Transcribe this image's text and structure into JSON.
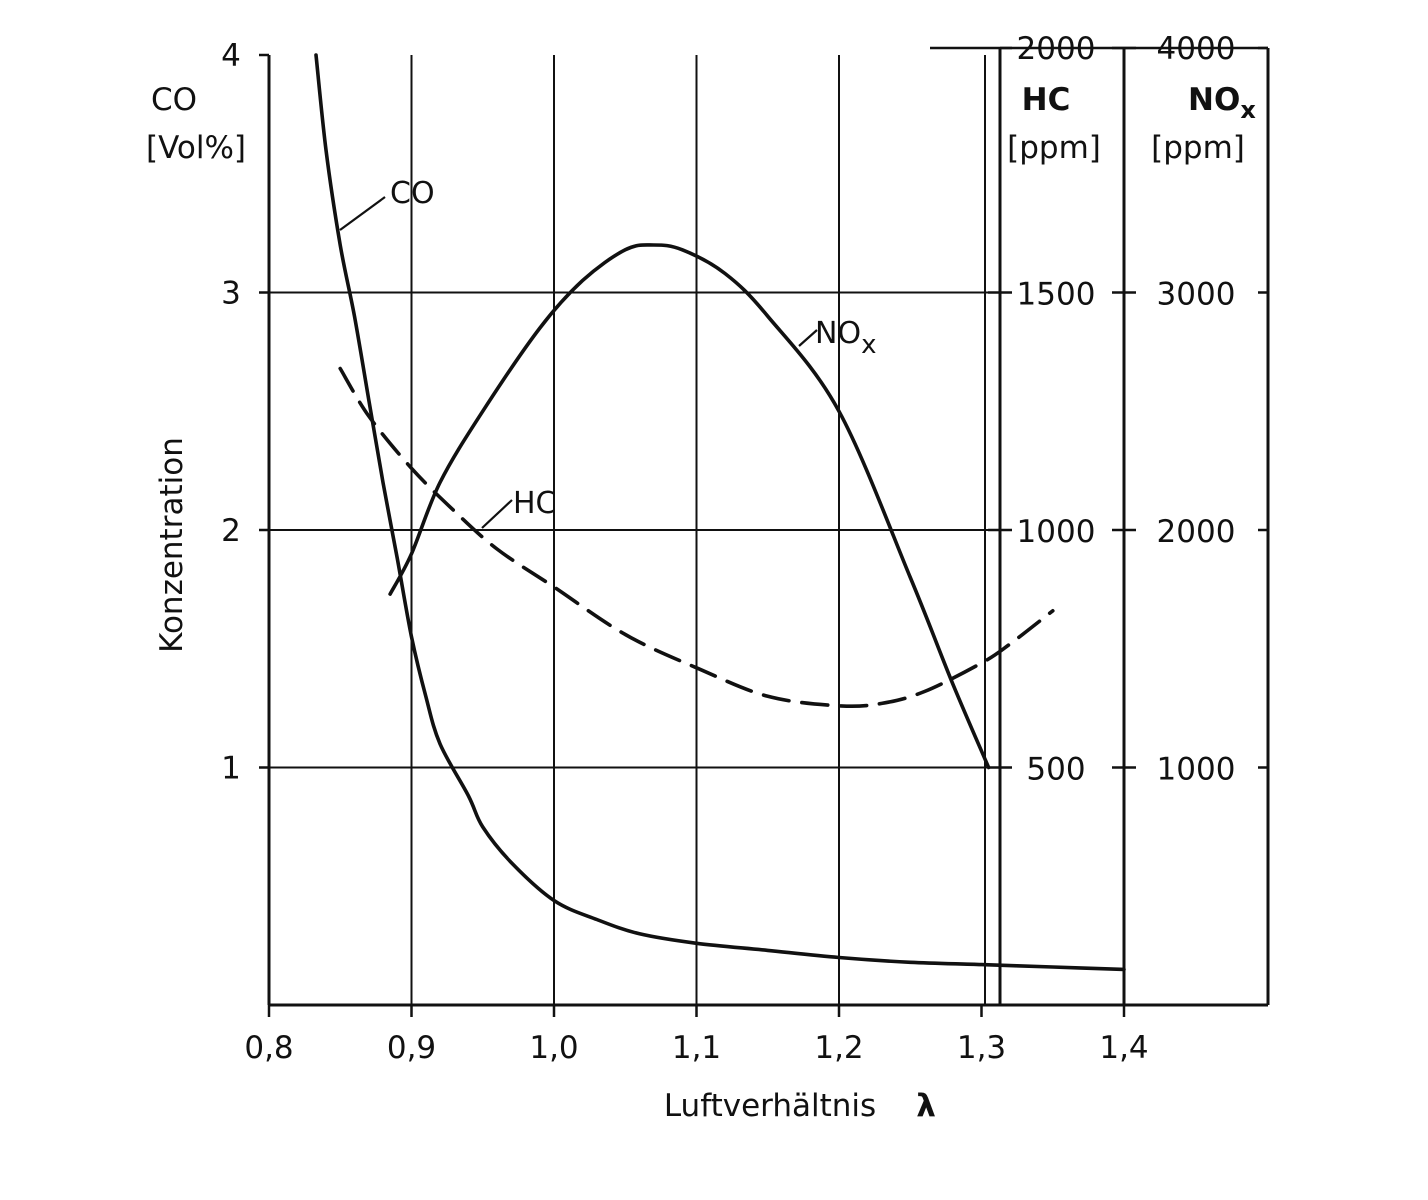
{
  "chart_data": {
    "type": "line",
    "title": "",
    "xlabel": "Luftverhältnis",
    "xsymbol": "λ",
    "ylabel": "Konzentration",
    "xlim": [
      0.8,
      1.4
    ],
    "x_ticks": [
      "0,8",
      "0,9",
      "1,0",
      "1,1",
      "1,2",
      "1,3",
      "1,4"
    ],
    "grid": true,
    "axes": {
      "co": {
        "name": "CO",
        "unit": "[Vol%]",
        "ylim": [
          0,
          4
        ],
        "ticks": [
          "1",
          "2",
          "3",
          "4"
        ]
      },
      "hc": {
        "name": "HC",
        "unit": "[ppm]",
        "ylim": [
          0,
          2000
        ],
        "ticks": [
          "500",
          "1000",
          "1500",
          "2000"
        ]
      },
      "nox": {
        "name": "NO",
        "name_sub": "x",
        "unit": "[ppm]",
        "ylim": [
          0,
          4000
        ],
        "ticks": [
          "1000",
          "2000",
          "3000",
          "4000"
        ]
      }
    },
    "series": [
      {
        "name": "CO",
        "label": "CO",
        "axis": "co",
        "style": "solid",
        "x": [
          0.833,
          0.84,
          0.85,
          0.86,
          0.87,
          0.88,
          0.89,
          0.9,
          0.91,
          0.92,
          0.94,
          0.95,
          0.97,
          1.0,
          1.03,
          1.06,
          1.1,
          1.15,
          1.2,
          1.25,
          1.3,
          1.35,
          1.4
        ],
        "values": [
          4.0,
          3.6,
          3.2,
          2.9,
          2.55,
          2.2,
          1.88,
          1.55,
          1.3,
          1.1,
          0.88,
          0.75,
          0.6,
          0.44,
          0.36,
          0.3,
          0.26,
          0.23,
          0.2,
          0.18,
          0.17,
          0.16,
          0.15
        ]
      },
      {
        "name": "HC",
        "label": "HC",
        "axis": "hc",
        "style": "dashed",
        "x": [
          0.85,
          0.87,
          0.9,
          0.93,
          0.96,
          1.0,
          1.05,
          1.1,
          1.15,
          1.2,
          1.23,
          1.26,
          1.3,
          1.32,
          1.35
        ],
        "values": [
          1340,
          1240,
          1130,
          1040,
          960,
          880,
          780,
          710,
          650,
          630,
          635,
          660,
          720,
          760,
          830
        ]
      },
      {
        "name": "NOx",
        "label": "NO",
        "label_sub": "x",
        "axis": "nox",
        "style": "solid",
        "x": [
          0.885,
          0.9,
          0.92,
          0.95,
          0.99,
          1.02,
          1.05,
          1.07,
          1.09,
          1.12,
          1.15,
          1.2,
          1.25,
          1.28,
          1.305
        ],
        "values": [
          1730,
          1900,
          2200,
          2500,
          2850,
          3050,
          3180,
          3200,
          3180,
          3080,
          2900,
          2500,
          1800,
          1350,
          1000
        ]
      }
    ]
  }
}
